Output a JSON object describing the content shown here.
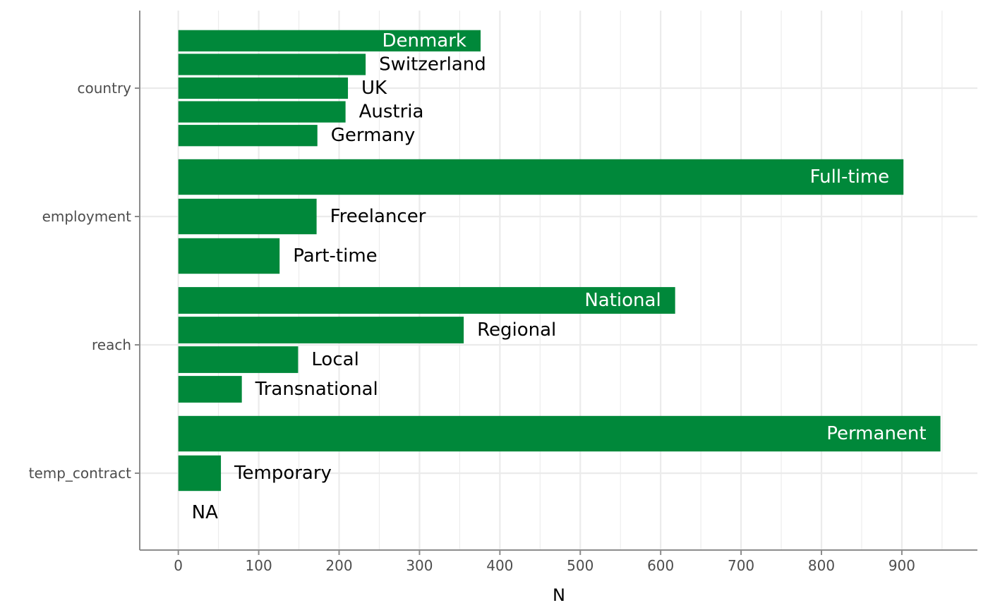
{
  "chart_data": {
    "type": "bar",
    "orientation": "horizontal",
    "xlabel": "N",
    "ylabel": "",
    "xlim": [
      -48,
      994
    ],
    "x_ticks": [
      0,
      100,
      200,
      300,
      400,
      500,
      600,
      700,
      800,
      900
    ],
    "x_minor_ticks": [
      50,
      150,
      250,
      350,
      450,
      550,
      650,
      750,
      850,
      950
    ],
    "grid": true,
    "bar_color": "#00883A",
    "inside_label_color": "#ffffff",
    "outside_label_color": "#000000",
    "groups": [
      {
        "name": "country",
        "bars": [
          {
            "label": "Denmark",
            "value": 376
          },
          {
            "label": "Switzerland",
            "value": 233
          },
          {
            "label": "UK",
            "value": 211
          },
          {
            "label": "Austria",
            "value": 208
          },
          {
            "label": "Germany",
            "value": 173
          }
        ]
      },
      {
        "name": "employment",
        "bars": [
          {
            "label": "Full-time",
            "value": 902
          },
          {
            "label": "Freelancer",
            "value": 172
          },
          {
            "label": "Part-time",
            "value": 126
          }
        ]
      },
      {
        "name": "reach",
        "bars": [
          {
            "label": "National",
            "value": 618
          },
          {
            "label": "Regional",
            "value": 355
          },
          {
            "label": "Local",
            "value": 149
          },
          {
            "label": "Transnational",
            "value": 79
          }
        ]
      },
      {
        "name": "temp_contract",
        "bars": [
          {
            "label": "Permanent",
            "value": 948
          },
          {
            "label": "Temporary",
            "value": 53
          },
          {
            "label": "NA",
            "value": 0
          }
        ]
      }
    ]
  }
}
